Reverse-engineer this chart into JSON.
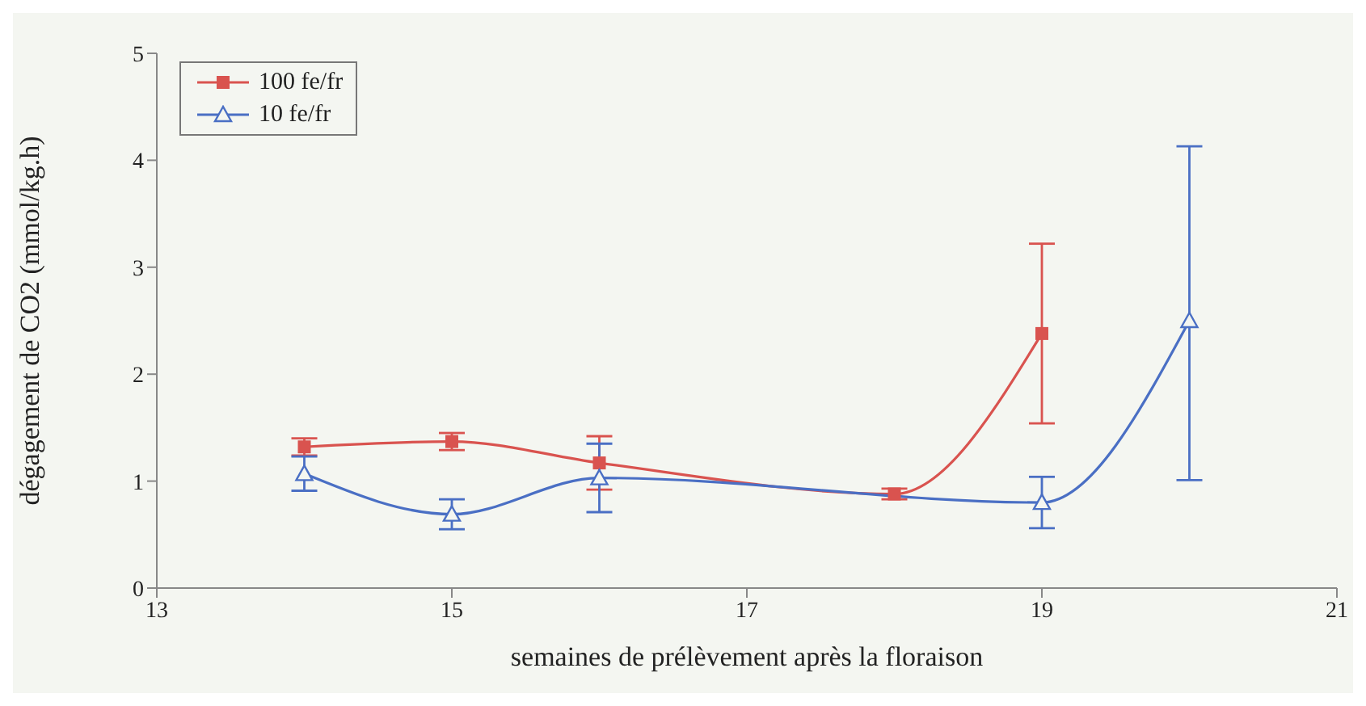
{
  "chart_data": {
    "type": "line",
    "xlabel": "semaines de prélèvement après la floraison",
    "ylabel": "dégagement de CO2 (mmol/kg.h)",
    "xlim": [
      13,
      21
    ],
    "xticks": [
      13,
      15,
      17,
      19,
      21
    ],
    "ylim": [
      0,
      5
    ],
    "yticks": [
      0,
      1,
      2,
      3,
      4,
      5
    ],
    "grid": false,
    "legend": "top left",
    "line_style": "solid",
    "series": [
      {
        "name": "100 fe/fr",
        "color": "#d9534f",
        "marker": "square",
        "x": [
          14,
          15,
          16,
          18,
          19
        ],
        "values": [
          1.32,
          1.37,
          1.17,
          0.88,
          2.38
        ],
        "errors": [
          0.08,
          0.08,
          0.25,
          0.05,
          0.84
        ]
      },
      {
        "name": "10 fe/fr",
        "color": "#4a6fc4",
        "marker": "triangle",
        "x": [
          14,
          15,
          16,
          19,
          20
        ],
        "values": [
          1.07,
          0.69,
          1.03,
          0.8,
          2.5
        ],
        "errors": [
          0.16,
          0.14,
          0.32,
          0.24,
          [
            1.01,
            4.13
          ]
        ]
      }
    ]
  }
}
